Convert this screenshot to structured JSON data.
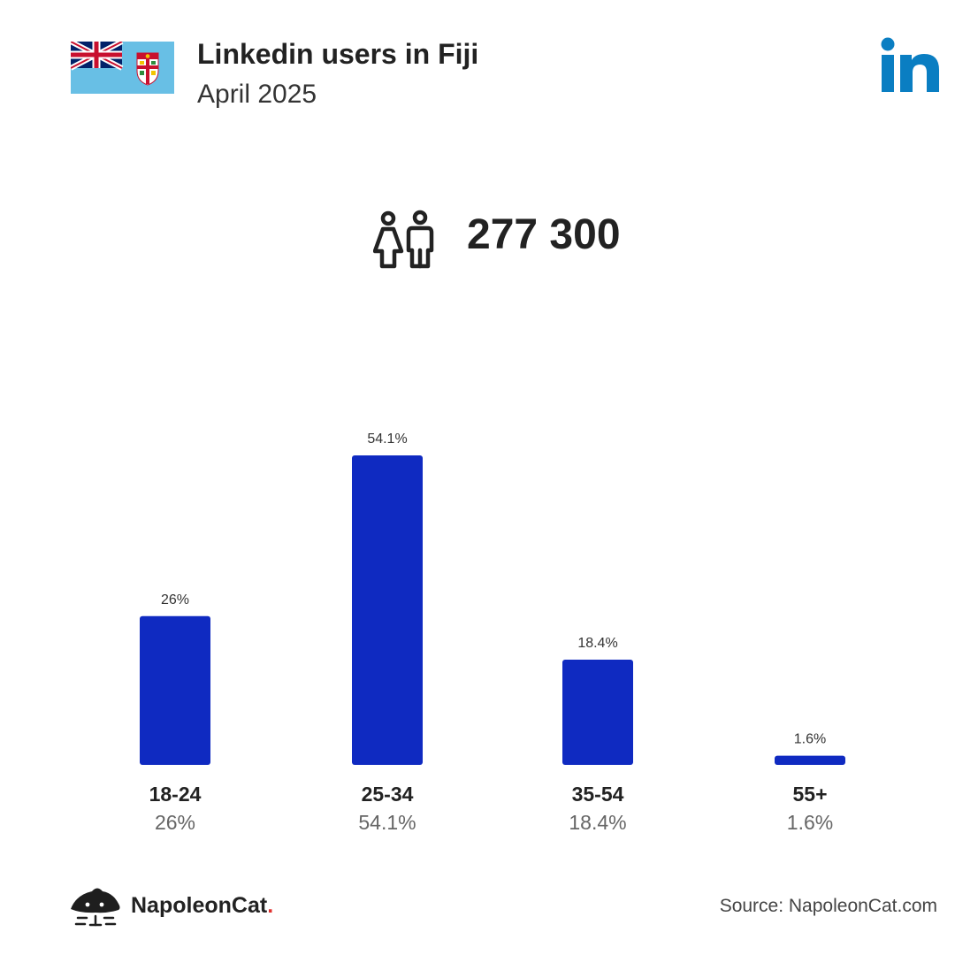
{
  "header": {
    "title": "Linkedin users in Fiji",
    "subtitle": "April 2025"
  },
  "total": {
    "value_text": "277 300",
    "icon": "users-icon"
  },
  "colors": {
    "bar": "#0f2ac1",
    "flag_blue": "#68bfe5",
    "linkedin_blue": "#0a7ec2"
  },
  "chart_data": {
    "type": "bar",
    "categories": [
      "18-24",
      "25-34",
      "35-54",
      "55+"
    ],
    "values": [
      26,
      54.1,
      18.4,
      1.6
    ],
    "value_labels": [
      "26%",
      "54.1%",
      "18.4%",
      "1.6%"
    ],
    "unit": "%",
    "title": "",
    "xlabel": "",
    "ylabel": "",
    "grid": false
  },
  "footer": {
    "brand": "NapoleonCat",
    "brand_dot": ".",
    "source": "Source: NapoleonCat.com"
  }
}
